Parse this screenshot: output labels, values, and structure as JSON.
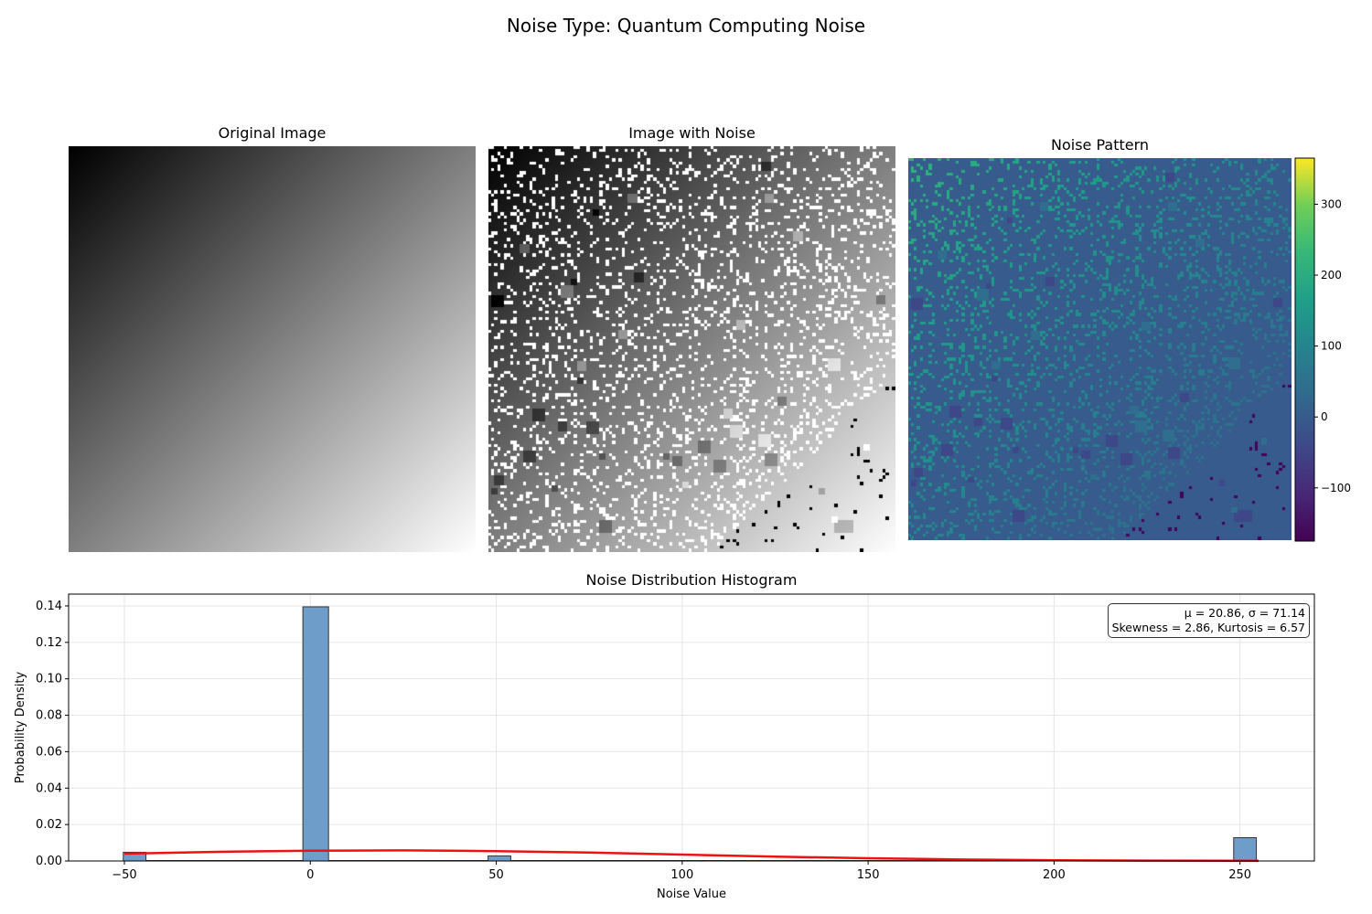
{
  "figure": {
    "suptitle": "Noise Type: Quantum Computing Noise"
  },
  "panels": {
    "original": {
      "title": "Original Image",
      "description_type": "diagonal gradient, black top-left to white bottom-right"
    },
    "noisy": {
      "title": "Image with Noise"
    },
    "pattern": {
      "title": "Noise Pattern",
      "colormap": "viridis",
      "colorbar": {
        "vmin": -175,
        "vmax": 365,
        "ticks": [
          -100,
          0,
          100,
          200,
          300
        ]
      }
    }
  },
  "chart_data": {
    "type": "bar",
    "title": "Noise Distribution Histogram",
    "xlabel": "Noise Value",
    "ylabel": "Probability Density",
    "xlim": [
      -65,
      270
    ],
    "ylim": [
      0,
      0.1465
    ],
    "xticks": [
      -50,
      0,
      50,
      100,
      150,
      200,
      250
    ],
    "yticks": [
      0.0,
      0.02,
      0.04,
      0.06,
      0.08,
      0.1,
      0.12,
      0.14
    ],
    "grid": true,
    "bar_color": "#6f9dc9",
    "bins": [
      {
        "x0": -50.3,
        "x1": -44.2,
        "density": 0.0048
      },
      {
        "x0": -2.0,
        "x1": 4.9,
        "density": 0.1395
      },
      {
        "x0": 47.8,
        "x1": 53.9,
        "density": 0.0028
      },
      {
        "x0": 248.3,
        "x1": 254.4,
        "density": 0.0128
      }
    ],
    "curve": {
      "color": "#ee1111",
      "x": [
        -50,
        -25,
        0,
        25,
        50,
        75,
        100,
        125,
        150,
        175,
        200,
        225,
        250,
        255
      ],
      "y": [
        0.004,
        0.005,
        0.0056,
        0.0058,
        0.0054,
        0.0046,
        0.0035,
        0.0024,
        0.0015,
        0.0008,
        0.0004,
        0.0002,
        0.0001,
        0.0001
      ]
    },
    "stats": {
      "line1": "μ = 20.86, σ = 71.14",
      "line2": "Skewness = 2.86, Kurtosis = 6.57"
    }
  }
}
